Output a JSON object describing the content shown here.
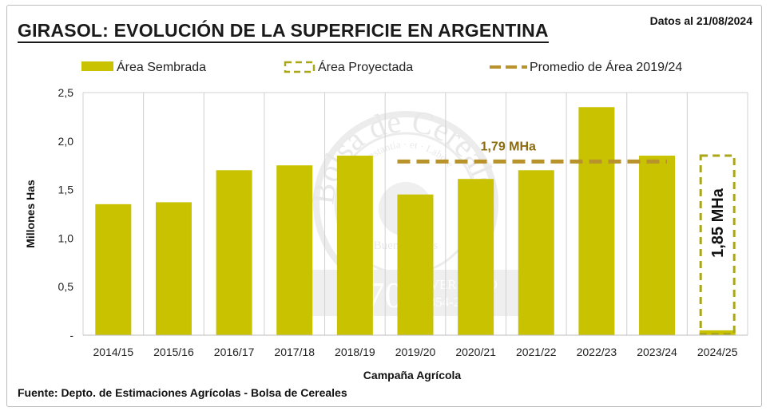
{
  "header": {
    "title": "GIRASOL: EVOLUCIÓN DE LA SUPERFICIE EN ARGENTINA",
    "date_note": "Datos al 21/08/2024"
  },
  "footer": {
    "source": "Fuente: Depto. de Estimaciones Agrícolas - Bolsa de Cereales"
  },
  "watermark": {
    "text_top": "Bolsa de Cereales",
    "text_motto": "Constantia · et · Labore",
    "text_city": "Buenos Aires",
    "text_number": "170",
    "text_anniv": "ANIVERSARIO",
    "text_years": "1854-2024"
  },
  "colors": {
    "bar": "#c8c200",
    "projected": "#a9a61a",
    "average": "#b8922a",
    "grid": "#d0d0d0"
  },
  "chart_data": {
    "type": "bar",
    "title": "GIRASOL: EVOLUCIÓN DE LA SUPERFICIE EN ARGENTINA",
    "xlabel": "Campaña Agrícola",
    "ylabel": "Millones Has",
    "ylim": [
      0,
      2.5
    ],
    "yticks": [
      0,
      0.5,
      1.0,
      1.5,
      2.0,
      2.5
    ],
    "ytick_labels": [
      "-",
      "0,5",
      "1,0",
      "1,5",
      "2,0",
      "2,5"
    ],
    "categories": [
      "2014/15",
      "2015/16",
      "2016/17",
      "2017/18",
      "2018/19",
      "2019/20",
      "2020/21",
      "2021/22",
      "2022/23",
      "2023/24",
      "2024/25"
    ],
    "legend": {
      "placement": "top",
      "entries": [
        "Área Sembrada",
        "Área Proyectada",
        "Promedio de Área 2019/24"
      ]
    },
    "series": [
      {
        "name": "Área Sembrada",
        "style": "solid-bar",
        "values": [
          1.35,
          1.37,
          1.7,
          1.75,
          1.85,
          1.45,
          1.61,
          1.7,
          2.35,
          1.85,
          0.05
        ]
      },
      {
        "name": "Área Proyectada",
        "style": "dashed-outline-bar",
        "values": [
          null,
          null,
          null,
          null,
          null,
          null,
          null,
          null,
          null,
          null,
          1.85
        ],
        "label": "1,85 MHa"
      },
      {
        "name": "Promedio de Área 2019/24",
        "style": "dashed-line",
        "value": 1.79,
        "from": "2019/20",
        "to": "2023/24",
        "label": "1,79 MHa"
      }
    ],
    "grid": "vertical"
  }
}
